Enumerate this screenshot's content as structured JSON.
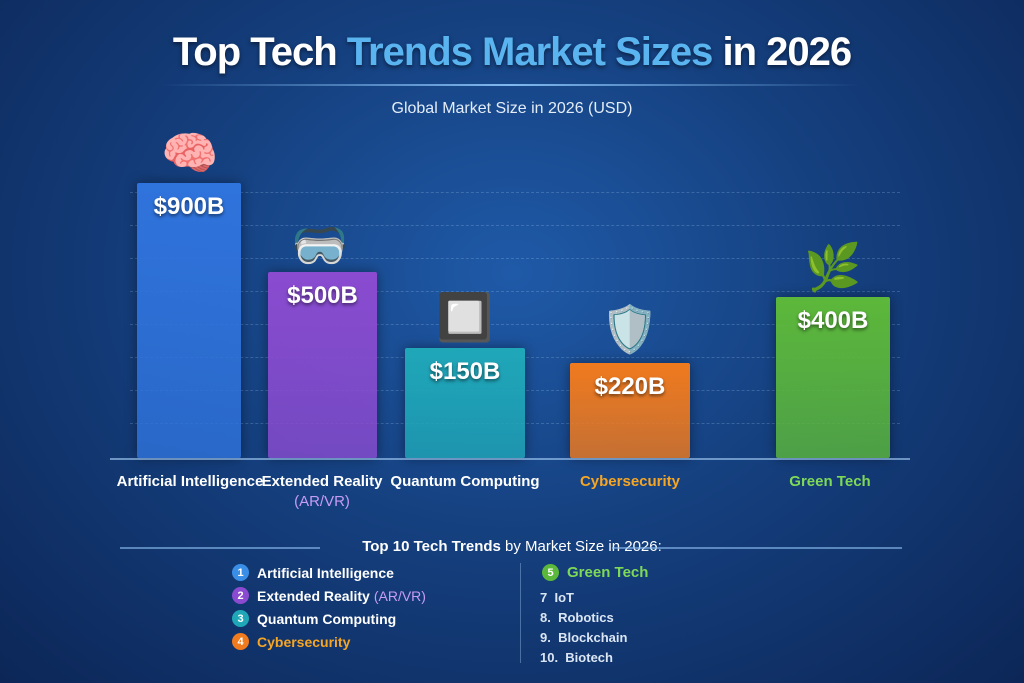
{
  "chart_data": {
    "type": "bar",
    "title_parts": [
      "Top Tech ",
      "Trends Market Sizes",
      " in 2026"
    ],
    "subtitle": "Global Market Size in 2026 (USD)",
    "categories": [
      "Artificial Intelligence",
      "Extended Reality",
      "Quantum Computing",
      "Cybersecurity",
      "Green Tech"
    ],
    "category_sub": [
      "",
      "(AR/VR)",
      "",
      "",
      ""
    ],
    "values": [
      900,
      500,
      150,
      220,
      400
    ],
    "value_labels": [
      "$900B",
      "$500B",
      "$150B",
      "$220B",
      "$400B"
    ],
    "unit": "USD billions",
    "colors": [
      "#2f73dc",
      "#8a4bd0",
      "#1fa7b8",
      "#f07a1e",
      "#5cb83a"
    ],
    "label_colors": [
      "#ffffff",
      "#ffffff",
      "#ffffff",
      "#f6a623",
      "#7ed957"
    ],
    "icons": [
      "brain-icon",
      "vr-headset-icon",
      "chip-icon",
      "shield-lock-icon",
      "wind-turbine-leaf-icon"
    ],
    "grid": true
  },
  "legend": {
    "title_bold": "Top 10 Tech Trends",
    "title_rest": " by Market Size in 2026:",
    "left": [
      {
        "n": "1",
        "label": "Artificial Intelligence",
        "extra": "",
        "color": "#3a8ee6",
        "text_color": "#ffffff"
      },
      {
        "n": "2",
        "label": "Extended Reality",
        "extra": "(AR/VR)",
        "color": "#8a4bd0",
        "text_color": "#ffffff"
      },
      {
        "n": "3",
        "label": "Quantum Computing",
        "extra": "",
        "color": "#1fa7b8",
        "text_color": "#ffffff"
      },
      {
        "n": "4",
        "label": "Cybersecurity",
        "extra": "",
        "color": "#f07a1e",
        "text_color": "#f6a623"
      }
    ],
    "highlight": {
      "n": "5",
      "label": "Green Tech",
      "color": "#5cb83a"
    },
    "plain": [
      "7  IoT",
      "8.  Robotics",
      "9.  Blockchain",
      "10.  Biotech"
    ]
  }
}
